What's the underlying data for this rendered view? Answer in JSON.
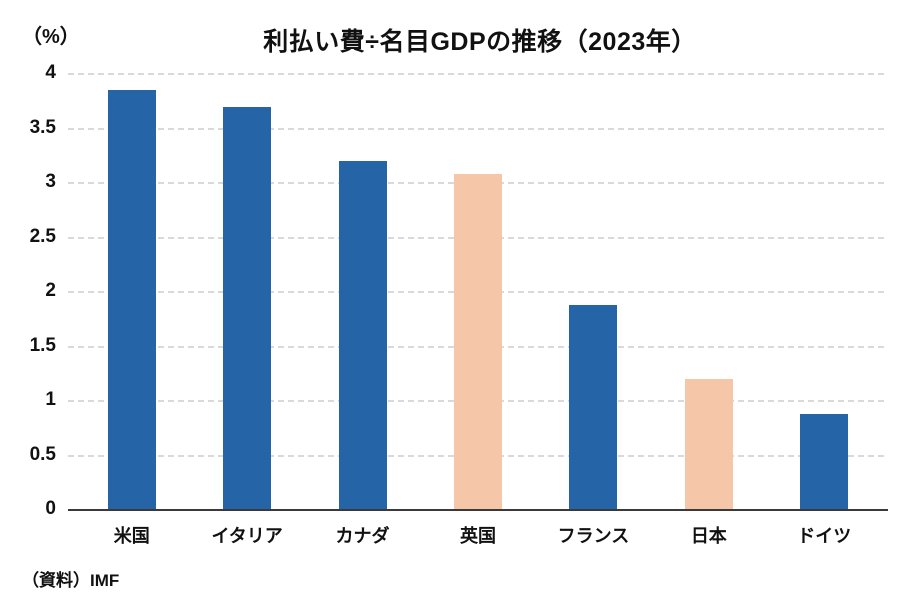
{
  "header": {
    "title": "利払い費÷名目GDPの推移（2023年）",
    "unit_label": "（%）"
  },
  "footer": {
    "source": "（資料）IMF"
  },
  "chart_data": {
    "type": "bar",
    "title": "利払い費÷名目GDPの推移（2023年）",
    "unit_label": "（%）",
    "xlabel": "",
    "ylabel": "（%）",
    "categories": [
      "米国",
      "イタリア",
      "カナダ",
      "英国",
      "フランス",
      "日本",
      "ドイツ"
    ],
    "values": [
      3.85,
      3.7,
      3.2,
      3.08,
      1.88,
      1.2,
      0.88
    ],
    "bar_colors": [
      "#2565a7",
      "#2565a7",
      "#2565a7",
      "#f5c6a8",
      "#2565a7",
      "#f5c6a8",
      "#2565a7"
    ],
    "ylim": [
      0,
      4
    ],
    "ytick_step": 0.5,
    "yticks": [
      0,
      0.5,
      1,
      1.5,
      2,
      2.5,
      3,
      3.5,
      4
    ],
    "grid": "horizontal-dashed",
    "legend": "none",
    "colors": {
      "default_bar": "#2565a7",
      "highlight_bar": "#f5c6a8",
      "gridline": "#d9d9d9",
      "axis_line": "#3a3a3a",
      "text": "#111111",
      "background": "#ffffff"
    },
    "source": "（資料）IMF"
  }
}
